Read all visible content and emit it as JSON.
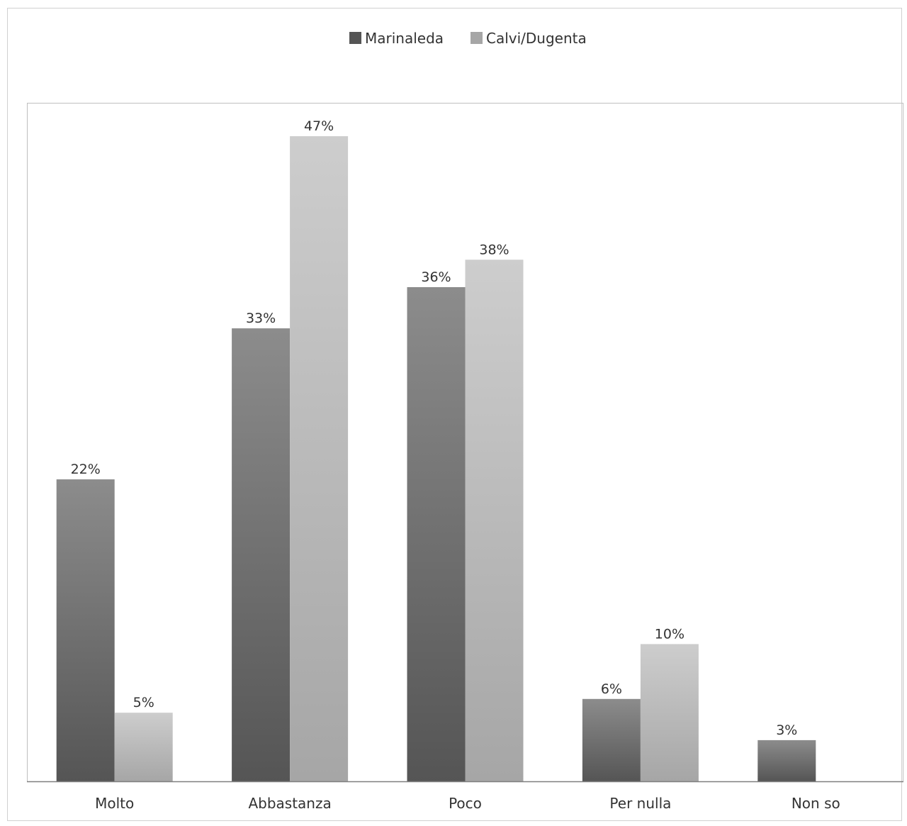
{
  "chart_data": {
    "type": "bar",
    "categories": [
      "Molto",
      "Abbastanza",
      "Poco",
      "Per nulla",
      "Non so"
    ],
    "series": [
      {
        "name": "Marinaleda",
        "values": [
          22,
          33,
          36,
          6,
          3
        ],
        "labels": [
          "22%",
          "33%",
          "36%",
          "6%",
          "3%"
        ]
      },
      {
        "name": "Calvi/Dugenta",
        "values": [
          5,
          47,
          38,
          10,
          null
        ],
        "labels": [
          "5%",
          "47%",
          "38%",
          "10%",
          ""
        ]
      }
    ],
    "legend_position": "top",
    "ylim": [
      0,
      50
    ],
    "grid": false,
    "colors": {
      "marinaleda_top": "#8c8c8c",
      "marinaleda_bottom": "#555555",
      "calvi_top": "#cdcdcd",
      "calvi_bottom": "#a6a6a6",
      "frame": "#bfbfbf",
      "axis": "#7f7f7f",
      "text": "#333333"
    }
  }
}
